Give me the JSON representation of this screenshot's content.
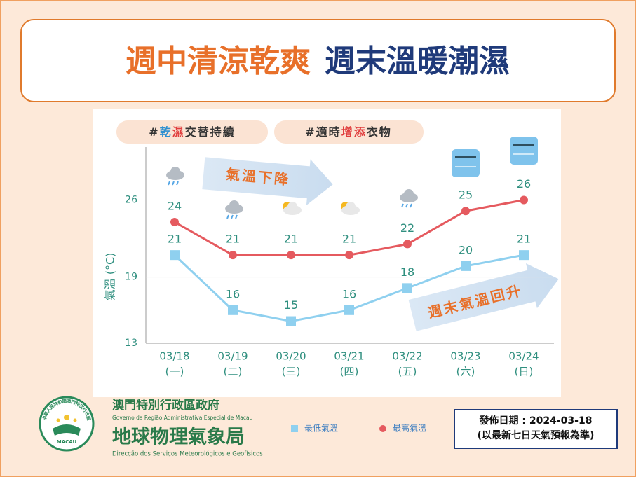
{
  "header": {
    "title_left": "週中清涼乾爽",
    "title_right": "週末溫暖潮濕"
  },
  "tags": [
    {
      "parts": [
        "#",
        "乾",
        "濕",
        "交替持續"
      ]
    },
    {
      "parts": [
        "#適時",
        "增添",
        "衣物"
      ]
    }
  ],
  "chart_data": {
    "type": "line",
    "ylabel": "氣溫 (°C)",
    "categories": [
      "03/18",
      "03/19",
      "03/20",
      "03/21",
      "03/22",
      "03/23",
      "03/24"
    ],
    "weekdays": [
      "(一)",
      "(二)",
      "(三)",
      "(四)",
      "(五)",
      "(六)",
      "(日)"
    ],
    "series": [
      {
        "name": "最低氣溫",
        "color": "#8fd0ef",
        "marker": "square",
        "values": [
          21,
          16,
          15,
          16,
          18,
          20,
          21
        ]
      },
      {
        "name": "最高氣溫",
        "color": "#e55a5f",
        "marker": "circle",
        "values": [
          24,
          21,
          21,
          21,
          22,
          25,
          26
        ]
      }
    ],
    "ylim": [
      13,
      30.8
    ],
    "yticks": [
      13,
      19,
      26
    ],
    "grid": true,
    "annotations": [
      "氣溫下降",
      "週末氣溫回升"
    ]
  },
  "footer": {
    "gov_zh": "澳門特別行政區政府",
    "gov_pt": "Governo da Região Administrativa Especial de Macau",
    "bureau_zh": "地球物理氣象局",
    "bureau_pt": "Direcção dos Serviços Meteorológicos e Geofísicos",
    "logo_ring": "中華人民共和國澳門特別行政區",
    "logo_word": "MACAU",
    "issue_date": "發佈日期 : 2024-03-18",
    "note": "(以最新七日天氣預報為準)"
  }
}
